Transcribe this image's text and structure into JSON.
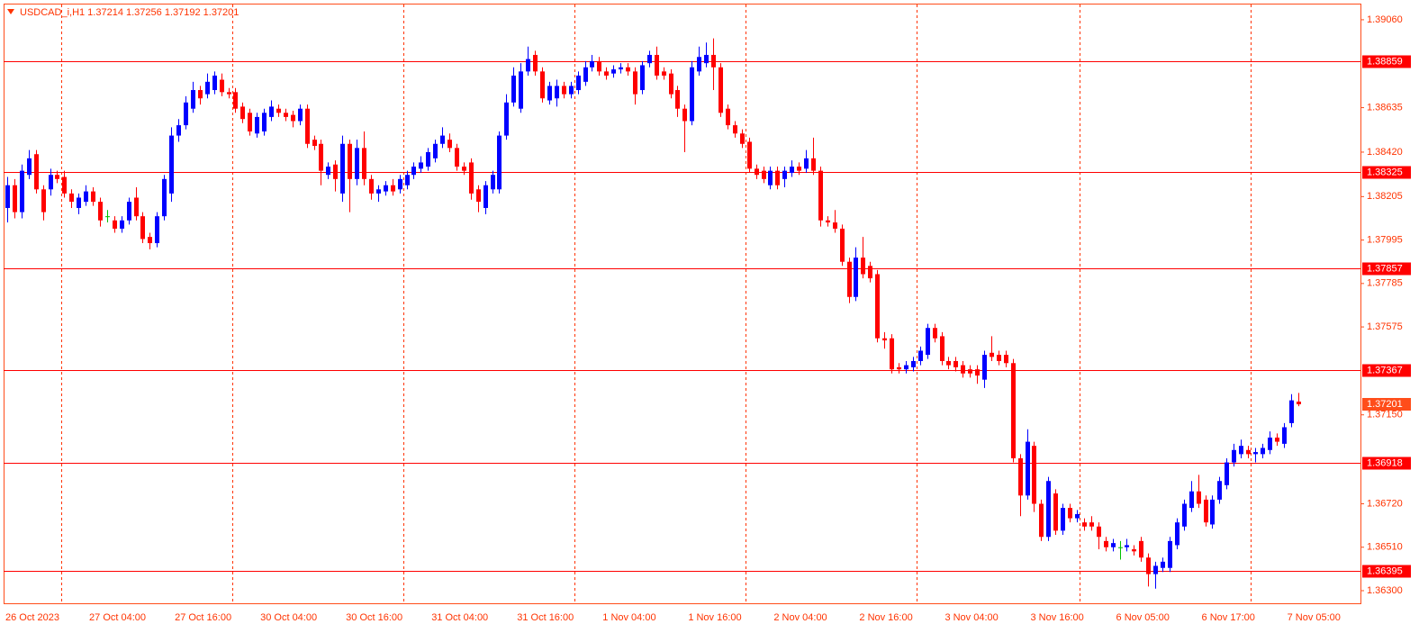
{
  "chart_data": {
    "type": "candlestick",
    "title": "USDCAD_i,H1  1.37214 1.37256 1.37192 1.37201",
    "categories": [
      "26 Oct 2023",
      null,
      null,
      null,
      null,
      null,
      null,
      null,
      null,
      null,
      null,
      null,
      "27 Oct 04:00",
      null,
      null,
      null,
      null,
      null,
      null,
      null,
      null,
      null,
      null,
      null,
      "27 Oct 16:00",
      null,
      null,
      null,
      null,
      null,
      null,
      null,
      null,
      null,
      null,
      null,
      "30 Oct 04:00",
      null,
      null,
      null,
      null,
      null,
      null,
      null,
      null,
      null,
      null,
      null,
      "30 Oct 16:00",
      null,
      null,
      null,
      null,
      null,
      null,
      null,
      null,
      null,
      null,
      null,
      "31 Oct 04:00",
      null,
      null,
      null,
      null,
      null,
      null,
      null,
      null,
      null,
      null,
      null,
      "31 Oct 16:00",
      null,
      null,
      null,
      null,
      null,
      null,
      null,
      null,
      null,
      null,
      null,
      "1 Nov 04:00",
      null,
      null,
      null,
      null,
      null,
      null,
      null,
      null,
      null,
      null,
      null,
      "1 Nov 16:00",
      null,
      null,
      null,
      null,
      null,
      null,
      null,
      null,
      null,
      null,
      null,
      "2 Nov 04:00",
      null,
      null,
      null,
      null,
      null,
      null,
      null,
      null,
      null,
      null,
      null,
      "2 Nov 16:00",
      null,
      null,
      null,
      null,
      null,
      null,
      null,
      null,
      null,
      null,
      null,
      "3 Nov 04:00",
      null,
      null,
      null,
      null,
      null,
      null,
      null,
      null,
      null,
      null,
      null,
      "3 Nov 16:00",
      null,
      null,
      null,
      null,
      null,
      null,
      null,
      null,
      null,
      null,
      null,
      "6 Nov 05:00",
      null,
      null,
      null,
      null,
      null,
      null,
      null,
      null,
      null,
      null,
      null,
      "6 Nov 17:00",
      null,
      null,
      null,
      null,
      null,
      null,
      null,
      null,
      null,
      null,
      null,
      "7 Nov 05:00",
      null
    ],
    "candles": [
      [
        1.3815,
        1.383,
        1.3808,
        1.3826
      ],
      [
        1.3826,
        1.3829,
        1.381,
        1.3813
      ],
      [
        1.3813,
        1.3836,
        1.381,
        1.3833
      ],
      [
        1.3831,
        1.3843,
        1.3829,
        1.3839
      ],
      [
        1.3841,
        1.3843,
        1.3822,
        1.3824
      ],
      [
        1.3824,
        1.3826,
        1.3809,
        1.3813
      ],
      [
        1.3824,
        1.3834,
        1.3821,
        1.3831
      ],
      [
        1.3831,
        1.3833,
        1.3827,
        1.3829
      ],
      [
        1.383,
        1.3833,
        1.382,
        1.3822
      ],
      [
        1.3822,
        1.3824,
        1.3815,
        1.3818
      ],
      [
        1.3815,
        1.3822,
        1.3812,
        1.382
      ],
      [
        1.3818,
        1.3826,
        1.3816,
        1.3823
      ],
      [
        1.3823,
        1.3825,
        1.3816,
        1.3818
      ],
      [
        1.3818,
        1.382,
        1.3806,
        1.3809
      ],
      [
        1.3811,
        1.3814,
        1.3808,
        1.3811
      ],
      [
        1.3809,
        1.3811,
        1.3803,
        1.3805
      ],
      [
        1.3805,
        1.3811,
        1.3803,
        1.3809
      ],
      [
        1.3809,
        1.382,
        1.3807,
        1.3818
      ],
      [
        1.382,
        1.3825,
        1.3809,
        1.3811
      ],
      [
        1.3811,
        1.3813,
        1.3798,
        1.38
      ],
      [
        1.3801,
        1.3803,
        1.3795,
        1.3798
      ],
      [
        1.3798,
        1.3813,
        1.3796,
        1.3811
      ],
      [
        1.3811,
        1.3831,
        1.3809,
        1.3829
      ],
      [
        1.3822,
        1.3854,
        1.3818,
        1.385
      ],
      [
        1.385,
        1.3858,
        1.3847,
        1.3855
      ],
      [
        1.3855,
        1.3869,
        1.3853,
        1.3866
      ],
      [
        1.3863,
        1.3876,
        1.3861,
        1.3872
      ],
      [
        1.3872,
        1.3874,
        1.3865,
        1.3868
      ],
      [
        1.387,
        1.388,
        1.3868,
        1.3876
      ],
      [
        1.3872,
        1.3881,
        1.387,
        1.3879
      ],
      [
        1.3877,
        1.388,
        1.3869,
        1.3871
      ],
      [
        1.3871,
        1.3873,
        1.3868,
        1.387
      ],
      [
        1.3871,
        1.3873,
        1.3861,
        1.3863
      ],
      [
        1.3864,
        1.3866,
        1.3856,
        1.3858
      ],
      [
        1.3861,
        1.3863,
        1.385,
        1.3852
      ],
      [
        1.3851,
        1.3861,
        1.3849,
        1.3859
      ],
      [
        1.3852,
        1.3863,
        1.385,
        1.3861
      ],
      [
        1.3859,
        1.3867,
        1.3857,
        1.3864
      ],
      [
        1.3863,
        1.3865,
        1.3859,
        1.3861
      ],
      [
        1.3861,
        1.3863,
        1.3857,
        1.3859
      ],
      [
        1.386,
        1.3862,
        1.3854,
        1.3857
      ],
      [
        1.3857,
        1.3865,
        1.3855,
        1.3863
      ],
      [
        1.3863,
        1.3865,
        1.3844,
        1.3846
      ],
      [
        1.3848,
        1.385,
        1.3843,
        1.3845
      ],
      [
        1.3846,
        1.3848,
        1.3826,
        1.3833
      ],
      [
        1.3831,
        1.3837,
        1.3829,
        1.3835
      ],
      [
        1.3836,
        1.3838,
        1.3823,
        1.3829
      ],
      [
        1.3822,
        1.385,
        1.3818,
        1.3846
      ],
      [
        1.3846,
        1.3848,
        1.3813,
        1.3829
      ],
      [
        1.3829,
        1.3848,
        1.3826,
        1.3844
      ],
      [
        1.3844,
        1.3852,
        1.3826,
        1.3829
      ],
      [
        1.3829,
        1.3831,
        1.3819,
        1.3822
      ],
      [
        1.3822,
        1.3826,
        1.3818,
        1.3824
      ],
      [
        1.3823,
        1.3828,
        1.3821,
        1.3826
      ],
      [
        1.3826,
        1.3829,
        1.3821,
        1.3823
      ],
      [
        1.3824,
        1.3831,
        1.3822,
        1.3829
      ],
      [
        1.3826,
        1.3833,
        1.3824,
        1.3831
      ],
      [
        1.3831,
        1.3837,
        1.3829,
        1.3835
      ],
      [
        1.3834,
        1.384,
        1.3832,
        1.3837
      ],
      [
        1.3835,
        1.3844,
        1.3833,
        1.3842
      ],
      [
        1.3839,
        1.3848,
        1.3837,
        1.3846
      ],
      [
        1.3846,
        1.3854,
        1.3844,
        1.385
      ],
      [
        1.3848,
        1.3851,
        1.3842,
        1.3844
      ],
      [
        1.3844,
        1.3846,
        1.3833,
        1.3835
      ],
      [
        1.3835,
        1.3837,
        1.3831,
        1.3833
      ],
      [
        1.3837,
        1.3839,
        1.3819,
        1.3822
      ],
      [
        1.3824,
        1.3826,
        1.3813,
        1.3818
      ],
      [
        1.3815,
        1.3828,
        1.3812,
        1.3826
      ],
      [
        1.3824,
        1.3833,
        1.3822,
        1.3831
      ],
      [
        1.3824,
        1.3852,
        1.3822,
        1.385
      ],
      [
        1.385,
        1.387,
        1.3848,
        1.3866
      ],
      [
        1.3866,
        1.3883,
        1.3864,
        1.3879
      ],
      [
        1.3863,
        1.3885,
        1.3861,
        1.3881
      ],
      [
        1.3881,
        1.3893,
        1.3879,
        1.3887
      ],
      [
        1.3889,
        1.3891,
        1.3879,
        1.3881
      ],
      [
        1.3881,
        1.3883,
        1.3866,
        1.3868
      ],
      [
        1.3867,
        1.3876,
        1.3865,
        1.3874
      ],
      [
        1.3868,
        1.3877,
        1.3864,
        1.3874
      ],
      [
        1.3874,
        1.3876,
        1.3868,
        1.387
      ],
      [
        1.387,
        1.3876,
        1.3868,
        1.3874
      ],
      [
        1.3872,
        1.3881,
        1.387,
        1.3879
      ],
      [
        1.3876,
        1.3886,
        1.3874,
        1.3883
      ],
      [
        1.3883,
        1.3889,
        1.3881,
        1.3886
      ],
      [
        1.3886,
        1.3888,
        1.3879,
        1.3881
      ],
      [
        1.3881,
        1.3883,
        1.3877,
        1.3879
      ],
      [
        1.388,
        1.3884,
        1.3878,
        1.3882
      ],
      [
        1.3882,
        1.3885,
        1.388,
        1.3883
      ],
      [
        1.3883,
        1.3885,
        1.3879,
        1.3881
      ],
      [
        1.3881,
        1.3883,
        1.3865,
        1.387
      ],
      [
        1.3872,
        1.3886,
        1.387,
        1.3884
      ],
      [
        1.3885,
        1.3891,
        1.3883,
        1.3889
      ],
      [
        1.3889,
        1.3893,
        1.3877,
        1.3879
      ],
      [
        1.3881,
        1.3883,
        1.3877,
        1.3879
      ],
      [
        1.388,
        1.3882,
        1.3868,
        1.387
      ],
      [
        1.3872,
        1.3874,
        1.3859,
        1.3863
      ],
      [
        1.3863,
        1.3865,
        1.3842,
        1.3857
      ],
      [
        1.3857,
        1.3886,
        1.3855,
        1.3883
      ],
      [
        1.3881,
        1.3893,
        1.3879,
        1.3888
      ],
      [
        1.3885,
        1.3895,
        1.3883,
        1.3889
      ],
      [
        1.3889,
        1.3897,
        1.3872,
        1.3883
      ],
      [
        1.3883,
        1.3885,
        1.3859,
        1.3861
      ],
      [
        1.3863,
        1.3865,
        1.3853,
        1.3855
      ],
      [
        1.3855,
        1.3857,
        1.3849,
        1.3851
      ],
      [
        1.3851,
        1.3853,
        1.3844,
        1.3846
      ],
      [
        1.3847,
        1.3849,
        1.3832,
        1.3834
      ],
      [
        1.3834,
        1.3836,
        1.3829,
        1.3831
      ],
      [
        1.3833,
        1.3835,
        1.3827,
        1.3829
      ],
      [
        1.3826,
        1.3835,
        1.3824,
        1.3833
      ],
      [
        1.3833,
        1.3835,
        1.3824,
        1.3826
      ],
      [
        1.3829,
        1.3835,
        1.3825,
        1.3833
      ],
      [
        1.3832,
        1.3838,
        1.383,
        1.3835
      ],
      [
        1.3835,
        1.3837,
        1.3831,
        1.3833
      ],
      [
        1.3834,
        1.3843,
        1.3832,
        1.3839
      ],
      [
        1.3839,
        1.3849,
        1.3831,
        1.3833
      ],
      [
        1.3833,
        1.3835,
        1.3806,
        1.3809
      ],
      [
        1.3809,
        1.3811,
        1.3806,
        1.3808
      ],
      [
        1.3808,
        1.3814,
        1.3803,
        1.3805
      ],
      [
        1.3805,
        1.3807,
        1.3787,
        1.3789
      ],
      [
        1.3789,
        1.3791,
        1.3769,
        1.3772
      ],
      [
        1.3772,
        1.3796,
        1.377,
        1.3791
      ],
      [
        1.3791,
        1.3801,
        1.3781,
        1.3783
      ],
      [
        1.3787,
        1.3789,
        1.3779,
        1.3781
      ],
      [
        1.3783,
        1.3785,
        1.375,
        1.3752
      ],
      [
        1.3752,
        1.3755,
        1.3747,
        1.3751
      ],
      [
        1.3752,
        1.3754,
        1.3735,
        1.3737
      ],
      [
        1.3738,
        1.374,
        1.3735,
        1.3737
      ],
      [
        1.3737,
        1.3741,
        1.3735,
        1.3739
      ],
      [
        1.3738,
        1.3743,
        1.3736,
        1.3741
      ],
      [
        1.3741,
        1.3748,
        1.3739,
        1.3746
      ],
      [
        1.3744,
        1.3759,
        1.3742,
        1.3757
      ],
      [
        1.3757,
        1.3759,
        1.375,
        1.3752
      ],
      [
        1.3753,
        1.3755,
        1.3739,
        1.3741
      ],
      [
        1.3741,
        1.3743,
        1.3737,
        1.3739
      ],
      [
        1.3741,
        1.3743,
        1.3736,
        1.3738
      ],
      [
        1.3739,
        1.3741,
        1.3733,
        1.3735
      ],
      [
        1.3737,
        1.3739,
        1.3733,
        1.3735
      ],
      [
        1.3737,
        1.3739,
        1.373,
        1.3734
      ],
      [
        1.3732,
        1.3746,
        1.3728,
        1.3744
      ],
      [
        1.3745,
        1.3753,
        1.3741,
        1.3743
      ],
      [
        1.3744,
        1.3746,
        1.3739,
        1.3741
      ],
      [
        1.3744,
        1.3746,
        1.3738,
        1.374
      ],
      [
        1.374,
        1.3742,
        1.3692,
        1.3694
      ],
      [
        1.3694,
        1.3696,
        1.3666,
        1.3676
      ],
      [
        1.3676,
        1.3708,
        1.3674,
        1.3702
      ],
      [
        1.37,
        1.3702,
        1.3668,
        1.3672
      ],
      [
        1.3672,
        1.3674,
        1.3654,
        1.3656
      ],
      [
        1.3656,
        1.3685,
        1.3654,
        1.3683
      ],
      [
        1.3677,
        1.3679,
        1.3657,
        1.3659
      ],
      [
        1.3659,
        1.3672,
        1.3657,
        1.367
      ],
      [
        1.367,
        1.3672,
        1.3663,
        1.3665
      ],
      [
        1.3665,
        1.3669,
        1.3663,
        1.3667
      ],
      [
        1.3663,
        1.3665,
        1.3659,
        1.3661
      ],
      [
        1.3663,
        1.3666,
        1.3659,
        1.3661
      ],
      [
        1.3661,
        1.3663,
        1.365,
        1.3656
      ],
      [
        1.3654,
        1.3656,
        1.3649,
        1.3651
      ],
      [
        1.3651,
        1.3655,
        1.3649,
        1.3653
      ],
      [
        1.3651,
        1.3654,
        1.3645,
        1.3651
      ],
      [
        1.3651,
        1.3655,
        1.3649,
        1.3652
      ],
      [
        1.365,
        1.3652,
        1.3647,
        1.3649
      ],
      [
        1.3654,
        1.3656,
        1.3644,
        1.3646
      ],
      [
        1.3646,
        1.3648,
        1.3632,
        1.3638
      ],
      [
        1.3638,
        1.3644,
        1.3631,
        1.3642
      ],
      [
        1.3641,
        1.3646,
        1.3639,
        1.3644
      ],
      [
        1.3641,
        1.3656,
        1.3639,
        1.3654
      ],
      [
        1.3652,
        1.3665,
        1.365,
        1.3663
      ],
      [
        1.3661,
        1.3674,
        1.3659,
        1.3672
      ],
      [
        1.367,
        1.3683,
        1.3668,
        1.3678
      ],
      [
        1.3678,
        1.3686,
        1.367,
        1.3672
      ],
      [
        1.3674,
        1.3676,
        1.3661,
        1.3663
      ],
      [
        1.3662,
        1.3676,
        1.366,
        1.3674
      ],
      [
        1.3674,
        1.3685,
        1.3672,
        1.3683
      ],
      [
        1.3681,
        1.3694,
        1.3679,
        1.3692
      ],
      [
        1.3692,
        1.3701,
        1.369,
        1.3698
      ],
      [
        1.3696,
        1.3703,
        1.3694,
        1.37
      ],
      [
        1.3698,
        1.37,
        1.3694,
        1.3696
      ],
      [
        1.3696,
        1.3699,
        1.3692,
        1.3697
      ],
      [
        1.3696,
        1.3701,
        1.3694,
        1.3699
      ],
      [
        1.3698,
        1.3707,
        1.3696,
        1.3704
      ],
      [
        1.3704,
        1.3706,
        1.37,
        1.3702
      ],
      [
        1.3701,
        1.3711,
        1.3699,
        1.3709
      ],
      [
        1.3711,
        1.3725,
        1.3709,
        1.3722
      ],
      [
        1.37214,
        1.37256,
        1.37192,
        1.37201
      ]
    ],
    "ylim": [
      1.36239,
      1.39138
    ],
    "yticks": [
      {
        "value": 1.3906,
        "label": "1.39060"
      },
      1.38635,
      {
        "value": 1.3842,
        "label": "1.38420"
      },
      1.38205,
      1.37995,
      1.37785,
      1.37575,
      {
        "value": 1.3715,
        "label": "1.37150"
      },
      {
        "value": 1.3672,
        "label": "1.36720"
      },
      {
        "value": 1.3651,
        "label": "1.36510"
      },
      {
        "value": 1.363,
        "label": "1.36300"
      }
    ],
    "levels": [
      1.38859,
      1.38325,
      1.37857,
      1.37367,
      1.36918,
      1.36395
    ],
    "last_price": 1.37201,
    "up_color": "#0000ff",
    "down_color": "#ff0000",
    "doji_color": "#00c000",
    "level_color": "#ff0000",
    "last_price_color": "#ff4d1a"
  }
}
